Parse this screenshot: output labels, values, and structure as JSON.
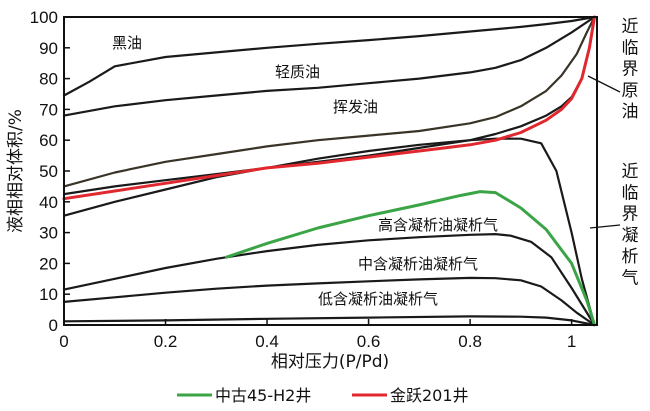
{
  "chart_data": {
    "type": "line",
    "xlabel": "相对压力(P/Pd)",
    "ylabel": "液相相对体积/%",
    "xlim": [
      0,
      1.05
    ],
    "ylim": [
      0,
      100
    ],
    "xticks": [
      "0",
      "0.2",
      "0.4",
      "0.6",
      "0.8",
      "1"
    ],
    "yticks": [
      "0",
      "10",
      "20",
      "30",
      "40",
      "50",
      "60",
      "70",
      "80",
      "90",
      "100"
    ],
    "grid": false,
    "legend_position": "bottom",
    "annotations": {
      "black_oil": "黑油",
      "light_oil": "轻质油",
      "volatile_oil": "挥发油",
      "high_cond": "高含凝析油凝析气",
      "mid_cond": "中含凝析油凝析气",
      "low_cond": "低含凝析油凝析气",
      "near_critical_oil": "近临界原油",
      "near_critical_gas": "近临界凝析气"
    },
    "series": [
      {
        "key": "black_oil",
        "color": "#1a1a1a",
        "legend": false,
        "x": [
          0,
          0.05,
          0.1,
          0.2,
          0.3,
          0.4,
          0.5,
          0.6,
          0.7,
          0.8,
          0.9,
          0.95,
          1.0,
          1.045
        ],
        "y": [
          74.5,
          79,
          84,
          87,
          88.5,
          90,
          91.3,
          92.5,
          93.8,
          95.3,
          96.8,
          97.7,
          98.7,
          100
        ]
      },
      {
        "key": "light_oil",
        "color": "#1a1a1a",
        "legend": false,
        "x": [
          0,
          0.05,
          0.1,
          0.2,
          0.3,
          0.4,
          0.5,
          0.6,
          0.7,
          0.8,
          0.85,
          0.9,
          0.95,
          1.0,
          1.045
        ],
        "y": [
          68,
          69.5,
          71,
          73,
          74.5,
          76,
          77,
          78.5,
          80,
          82,
          83.5,
          86,
          90,
          95,
          100
        ]
      },
      {
        "key": "volatile_oil_upper",
        "color": "#3a3428",
        "legend": false,
        "x": [
          0,
          0.1,
          0.2,
          0.3,
          0.4,
          0.5,
          0.6,
          0.7,
          0.8,
          0.85,
          0.9,
          0.95,
          0.98,
          1.01,
          1.03,
          1.045
        ],
        "y": [
          45,
          49.5,
          53,
          55.5,
          58,
          60,
          61.5,
          63,
          65.5,
          67.5,
          71,
          76,
          81,
          88,
          95,
          100
        ]
      },
      {
        "key": "volatile_oil_lower",
        "color": "#1a1a1a",
        "legend": false,
        "x": [
          0,
          0.1,
          0.2,
          0.3,
          0.4,
          0.5,
          0.6,
          0.7,
          0.8,
          0.85,
          0.9,
          0.95,
          0.98,
          1.0,
          1.02,
          1.035,
          1.045
        ],
        "y": [
          42.5,
          45,
          47,
          49,
          51,
          53,
          55,
          57.5,
          60,
          62,
          64.5,
          68,
          71,
          74,
          80,
          90,
          100
        ]
      },
      {
        "key": "near_critical_gas",
        "color": "#1a1a1a",
        "legend": false,
        "x": [
          0,
          0.1,
          0.2,
          0.3,
          0.4,
          0.5,
          0.6,
          0.7,
          0.8,
          0.85,
          0.9,
          0.94,
          0.97,
          1.0,
          1.02,
          1.045
        ],
        "y": [
          35.5,
          40,
          44,
          48,
          51,
          54,
          56.5,
          58.5,
          60,
          60.5,
          60.5,
          59,
          50,
          30,
          15,
          0
        ]
      },
      {
        "key": "high_cond",
        "color": "#1a1a1a",
        "legend": false,
        "x": [
          0,
          0.1,
          0.2,
          0.3,
          0.4,
          0.5,
          0.6,
          0.7,
          0.8,
          0.85,
          0.88,
          0.92,
          0.96,
          1.0,
          1.045
        ],
        "y": [
          11.5,
          15,
          18.5,
          21.5,
          24,
          26,
          27.5,
          28.5,
          29.3,
          29.5,
          29,
          27,
          22,
          12,
          0
        ]
      },
      {
        "key": "mid_cond",
        "color": "#1a1a1a",
        "legend": false,
        "x": [
          0,
          0.1,
          0.2,
          0.3,
          0.4,
          0.5,
          0.6,
          0.7,
          0.8,
          0.85,
          0.9,
          0.94,
          0.98,
          1.01,
          1.045
        ],
        "y": [
          7.5,
          9,
          10.5,
          11.8,
          12.8,
          13.5,
          14.2,
          14.8,
          15.3,
          15.2,
          14.5,
          12.5,
          8,
          4,
          0
        ]
      },
      {
        "key": "low_cond",
        "color": "#1a1a1a",
        "legend": false,
        "x": [
          0,
          0.2,
          0.4,
          0.6,
          0.8,
          0.9,
          0.95,
          1.0,
          1.045
        ],
        "y": [
          1.2,
          1.5,
          2.0,
          2.4,
          2.8,
          2.7,
          2.4,
          1.5,
          0
        ]
      },
      {
        "key": "zhonggu",
        "name": "中古45-H2井",
        "color": "#3aa446",
        "legend": true,
        "x": [
          0.32,
          0.4,
          0.5,
          0.6,
          0.7,
          0.78,
          0.82,
          0.85,
          0.9,
          0.95,
          1.0,
          1.03,
          1.045
        ],
        "y": [
          22,
          26.5,
          31.5,
          35.5,
          39,
          42,
          43.3,
          43,
          38,
          31,
          20,
          8,
          0
        ]
      },
      {
        "key": "jinyue",
        "name": "金跃201井",
        "color": "#e0282e",
        "legend": true,
        "x": [
          0,
          0.1,
          0.2,
          0.3,
          0.4,
          0.5,
          0.6,
          0.7,
          0.8,
          0.85,
          0.9,
          0.95,
          0.98,
          1.0,
          1.02,
          1.035,
          1.045
        ],
        "y": [
          41,
          43.5,
          46,
          48.5,
          51,
          52.5,
          54.5,
          56.5,
          58.5,
          60,
          62.5,
          66.5,
          70,
          73.5,
          80,
          90,
          100
        ]
      }
    ]
  }
}
